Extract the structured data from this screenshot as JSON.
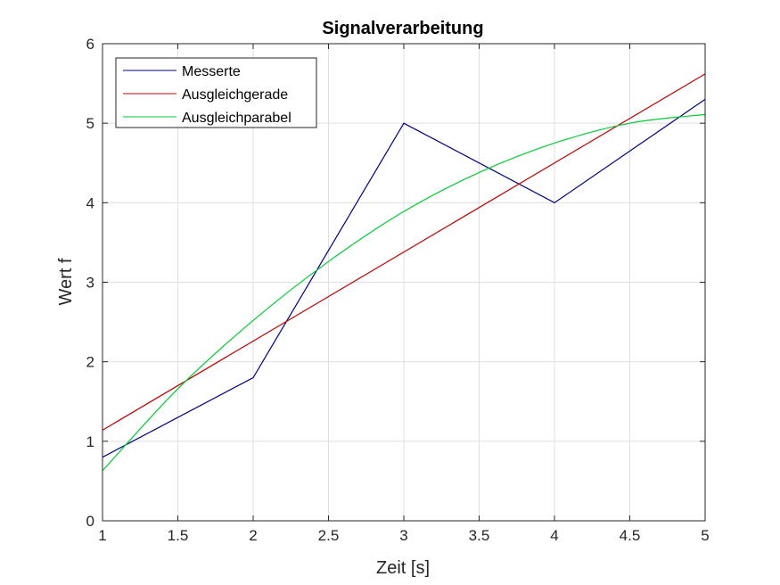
{
  "chart_data": {
    "type": "line",
    "title": "Signalverarbeitung",
    "xlabel": "Zeit [s]",
    "ylabel": "Wert f",
    "xlim": [
      1,
      5
    ],
    "ylim": [
      0,
      6
    ],
    "xticks": [
      1,
      1.5,
      2,
      2.5,
      3,
      3.5,
      4,
      4.5,
      5
    ],
    "yticks": [
      0,
      1,
      2,
      3,
      4,
      5,
      6
    ],
    "grid": true,
    "legend_position": "top-left",
    "series": [
      {
        "name": "Messerte",
        "color": "#000080",
        "x": [
          1,
          2,
          3,
          4,
          5
        ],
        "y": [
          0.8,
          1.8,
          5.0,
          4.0,
          5.3
        ]
      },
      {
        "name": "Ausgleichgerade",
        "color": "#c00000",
        "x": [
          1,
          2,
          3,
          4,
          5
        ],
        "y": [
          1.14,
          2.26,
          3.38,
          4.5,
          5.62
        ]
      },
      {
        "name": "Ausgleichparabel",
        "color": "#00cc33",
        "x": [
          1,
          1.5,
          2,
          2.5,
          3,
          3.5,
          4,
          4.5,
          5
        ],
        "y": [
          0.63,
          1.66,
          2.52,
          3.26,
          3.89,
          4.38,
          4.75,
          5.0,
          5.11
        ]
      }
    ]
  }
}
